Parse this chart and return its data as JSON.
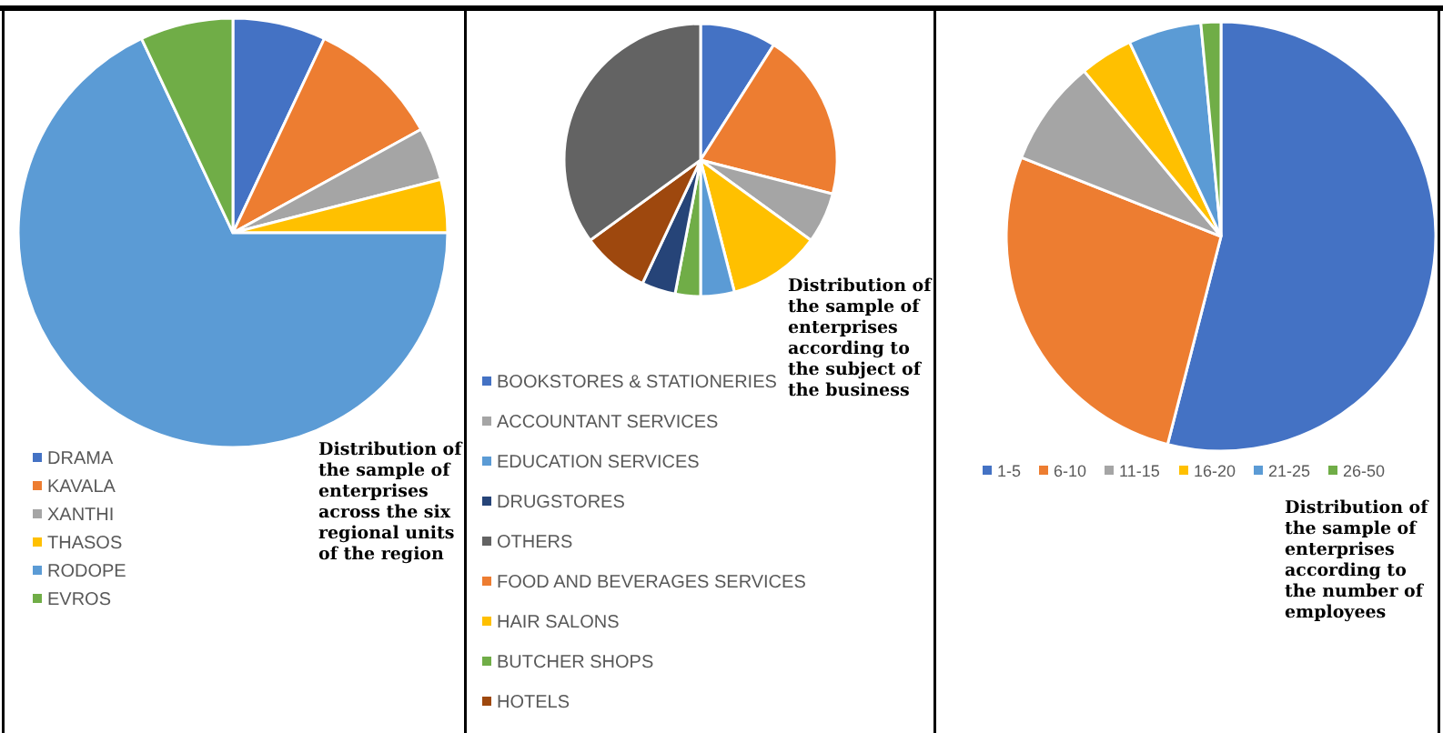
{
  "chart_data": [
    {
      "type": "pie",
      "title": "Distribution of the sample of enterprises across the six regional units of the region",
      "categories": [
        "DRAMA",
        "KAVALA",
        "XANTHI",
        "THASOS",
        "RODOPE",
        "EVROS"
      ],
      "values": [
        7,
        10,
        4,
        4,
        68,
        7
      ],
      "colors": [
        "#4472c4",
        "#ed7d31",
        "#a5a5a5",
        "#ffc000",
        "#5b9bd5",
        "#70ad47"
      ],
      "legend": "bottom left"
    },
    {
      "type": "pie",
      "title": "Distribution of the sample of enterprises according to the subject of the business",
      "categories": [
        "BOOKSTORES & STATIONERIES",
        "FOOD AND BEVERAGES SERVICES",
        "ACCOUNTANT SERVICES",
        "HAIR SALONS",
        "EDUCATION SERVICES",
        "BUTCHER SHOPS",
        "DRUGSTORES",
        "HOTELS",
        "OTHERS"
      ],
      "values": [
        9,
        20,
        6,
        11,
        4,
        3,
        4,
        8,
        35
      ],
      "colors": [
        "#4472c4",
        "#ed7d31",
        "#a5a5a5",
        "#ffc000",
        "#5b9bd5",
        "#70ad47",
        "#264478",
        "#9e480e",
        "#636363"
      ],
      "legend": "bottom left"
    },
    {
      "type": "pie",
      "title": "Distribution of the sample of enterprises according to the number of employees",
      "categories": [
        "1-5",
        "6-10",
        "11-15",
        "16-20",
        "21-25",
        "26-50"
      ],
      "values": [
        54,
        27,
        8,
        4,
        5.5,
        1.5
      ],
      "colors": [
        "#4472c4",
        "#ed7d31",
        "#a5a5a5",
        "#ffc000",
        "#5b9bd5",
        "#70ad47"
      ],
      "legend": "bottom"
    }
  ]
}
